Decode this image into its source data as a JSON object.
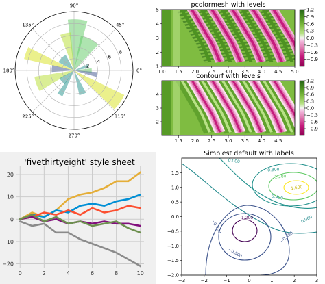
{
  "colors": {
    "fte_palette": [
      "#008fd5",
      "#fc4f30",
      "#e5ae38",
      "#6d904f",
      "#8b8b8b",
      "#810f7c"
    ],
    "fte_background": "#f0f0f0",
    "fte_grid": "#cbcbcb",
    "piyg_low": "#8e0152",
    "piyg_mid": "#f7f7f7",
    "piyg_high": "#276419",
    "viridis": [
      "#440154",
      "#3b528b",
      "#21918c",
      "#5ec962",
      "#fde725"
    ]
  },
  "chart_data": [
    {
      "id": "polar",
      "type": "bar",
      "projection": "polar",
      "grid": true,
      "angle_tick_labels": [
        "0°",
        "45°",
        "90°",
        "135°",
        "180°",
        "225°",
        "270°",
        "315°"
      ],
      "radial_tick_labels": [
        "2",
        "4",
        "6",
        "8"
      ],
      "rlim": [
        0,
        10
      ],
      "bars": [
        {
          "theta_deg": 0,
          "width_deg": 14,
          "r": 3.0,
          "color": "#5ec962"
        },
        {
          "theta_deg": 17,
          "width_deg": 14,
          "r": 2.5,
          "color": "#21918c"
        },
        {
          "theta_deg": 63,
          "width_deg": 32,
          "r": 6.0,
          "color": "#5ec962"
        },
        {
          "theta_deg": 86,
          "width_deg": 22,
          "r": 8.7,
          "color": "#5ec962"
        },
        {
          "theta_deg": 103,
          "width_deg": 16,
          "r": 6.5,
          "color": "#b5de2b"
        },
        {
          "theta_deg": 135,
          "width_deg": 34,
          "r": 3.0,
          "color": "#21918c"
        },
        {
          "theta_deg": 160,
          "width_deg": 14,
          "r": 8.7,
          "color": "#d8e219"
        },
        {
          "theta_deg": 175,
          "width_deg": 18,
          "r": 3.8,
          "color": "#3b528b"
        },
        {
          "theta_deg": 200,
          "width_deg": 22,
          "r": 6.8,
          "color": "#b5de2b"
        },
        {
          "theta_deg": 222,
          "width_deg": 28,
          "r": 2.8,
          "color": "#21918c"
        },
        {
          "theta_deg": 240,
          "width_deg": 12,
          "r": 4.8,
          "color": "#21918c"
        },
        {
          "theta_deg": 290,
          "width_deg": 16,
          "r": 4.3,
          "color": "#21918c"
        },
        {
          "theta_deg": 325,
          "width_deg": 18,
          "r": 9.5,
          "color": "#d8e219"
        },
        {
          "theta_deg": 350,
          "width_deg": 12,
          "r": 4.0,
          "color": "#3b528b"
        }
      ]
    },
    {
      "id": "pcolormesh",
      "type": "heatmap",
      "title": "pcolormesh with levels",
      "xlim": [
        1.0,
        5.0
      ],
      "ylim": [
        1,
        5
      ],
      "xticks": [
        "1.0",
        "1.5",
        "2.0",
        "2.5",
        "3.0",
        "3.5",
        "4.0",
        "4.5",
        "5.0"
      ],
      "yticks": [
        "1",
        "2",
        "3",
        "4",
        "5"
      ],
      "colorbar_ticks": [
        "1.2",
        "0.9",
        "0.6",
        "0.3",
        "0.0",
        "−0.3",
        "−0.6",
        "−0.9"
      ],
      "vrange": [
        -1.2,
        1.2
      ]
    },
    {
      "id": "contourf",
      "type": "heatmap",
      "title": "contourf with levels",
      "xlim": [
        1.0,
        5.0
      ],
      "ylim": [
        1,
        5
      ],
      "xticks": [
        "1.5",
        "2.0",
        "2.5",
        "3.0",
        "3.5",
        "4.0",
        "4.5"
      ],
      "yticks": [
        "2",
        "3",
        "4"
      ],
      "colorbar_ticks": [
        "1.2",
        "0.9",
        "0.6",
        "0.3",
        "0.0",
        "−0.3",
        "−0.6",
        "−0.9"
      ],
      "vrange": [
        -1.2,
        1.2
      ]
    },
    {
      "id": "fivethirtyeight",
      "type": "line",
      "title": "'fivethirtyeight' style sheet",
      "xlim": [
        -0.3,
        10.3
      ],
      "ylim": [
        -22,
        24
      ],
      "xticks": [
        "0",
        "2",
        "4",
        "6",
        "8",
        "10"
      ],
      "yticks": [
        "20",
        "10",
        "0",
        "−10",
        "−20"
      ],
      "grid": true,
      "x": [
        0,
        1,
        2,
        3,
        4,
        5,
        6,
        7,
        8,
        9,
        10
      ],
      "series": [
        {
          "color": "#8b8b8b",
          "values": [
            -1,
            -3,
            -2,
            -6,
            -6,
            -9,
            -11,
            -13,
            -15,
            -18,
            -21
          ]
        },
        {
          "color": "#e5ae38",
          "values": [
            0,
            3,
            1,
            4,
            9,
            11,
            12,
            14,
            17,
            17,
            21
          ]
        },
        {
          "color": "#008fd5",
          "values": [
            0,
            2,
            1,
            4,
            3,
            6,
            7,
            6,
            8,
            9,
            11
          ]
        },
        {
          "color": "#fc4f30",
          "values": [
            0,
            1,
            3,
            2,
            4,
            2,
            5,
            3,
            4,
            6,
            5
          ]
        },
        {
          "color": "#810f7c",
          "values": [
            0,
            1,
            -1,
            0,
            -2,
            -1,
            -2,
            -1,
            -2,
            -2,
            -3
          ]
        },
        {
          "color": "#6d904f",
          "values": [
            0,
            2,
            -1,
            1,
            -2,
            -1,
            -3,
            -2,
            -1,
            -4,
            -6
          ]
        }
      ]
    },
    {
      "id": "contour",
      "type": "line",
      "title": "Simplest default with labels",
      "xlim": [
        -3,
        3
      ],
      "ylim": [
        -2,
        2
      ],
      "xticks": [
        "−3",
        "−2",
        "−1",
        "0",
        "1",
        "2",
        "3"
      ],
      "yticks": [
        "1.5",
        "1.0",
        "0.5",
        "0.0",
        "−0.5",
        "−1.0",
        "−1.5",
        "−2.0"
      ],
      "contour_labels": [
        "1.600",
        "1.200",
        "0.800",
        "0.400",
        "0.000",
        "0.000",
        "−0.400",
        "−0.400",
        "−0.800",
        "−1.200"
      ]
    }
  ]
}
